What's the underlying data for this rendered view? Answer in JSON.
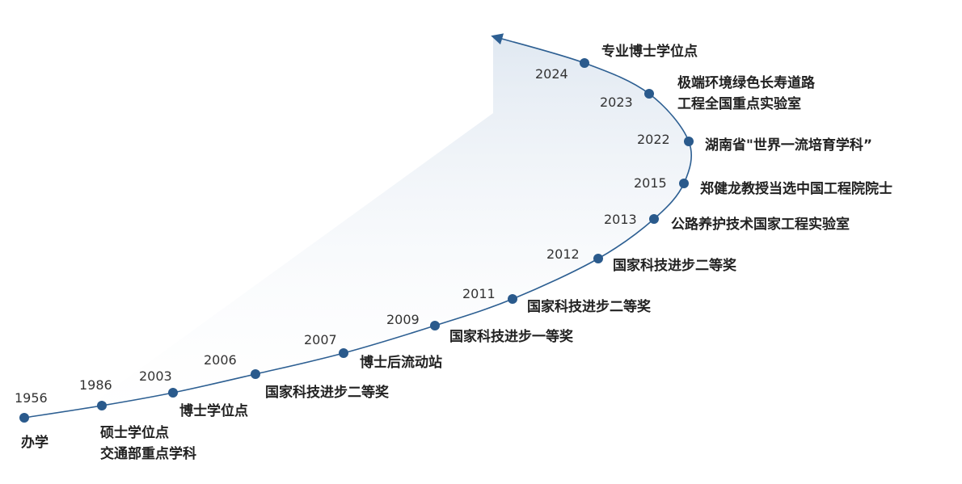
{
  "milestones": [
    {
      "year": "1956",
      "lines": [
        "办学"
      ]
    },
    {
      "year": "1986",
      "lines": [
        "硕士学位点",
        "交通部重点学科"
      ]
    },
    {
      "year": "2003",
      "lines": [
        "博士学位点"
      ]
    },
    {
      "year": "2006",
      "lines": [
        "国家科技进步二等奖"
      ]
    },
    {
      "year": "2007",
      "lines": [
        "博士后流动站"
      ]
    },
    {
      "year": "2009",
      "lines": [
        "国家科技进步一等奖"
      ]
    },
    {
      "year": "2011",
      "lines": [
        "国家科技进步二等奖"
      ]
    },
    {
      "year": "2012",
      "lines": [
        "国家科技进步二等奖"
      ]
    },
    {
      "year": "2013",
      "lines": [
        "公路养护技术国家工程实验室"
      ]
    },
    {
      "year": "2015",
      "lines": [
        "郑健龙教授当选中国工程院院士"
      ]
    },
    {
      "year": "2022",
      "lines": [
        "湖南省\"世界一流培育学科”"
      ]
    },
    {
      "year": "2023",
      "lines": [
        "极端环境绿色长寿道路",
        "工程全国重点实验室"
      ]
    },
    {
      "year": "2024",
      "lines": [
        "专业博士学位点"
      ]
    }
  ]
}
